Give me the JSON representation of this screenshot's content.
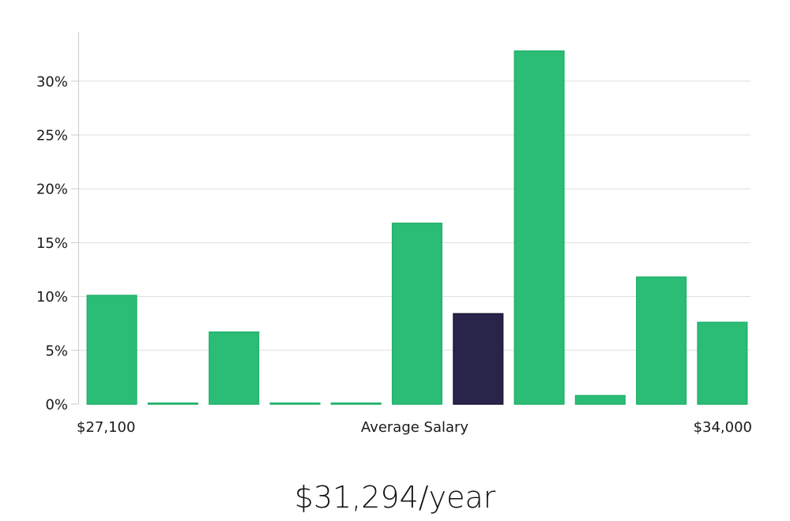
{
  "chart_data": {
    "type": "bar",
    "values": [
      10.1,
      0.1,
      6.7,
      0.1,
      0.1,
      16.8,
      8.4,
      32.8,
      0.8,
      11.8,
      7.6
    ],
    "highlight_index": 6,
    "ylim": [
      0,
      34.6
    ],
    "yticks": [
      0,
      5,
      10,
      15,
      20,
      25,
      30
    ],
    "ytick_labels": [
      "0%",
      "5%",
      "10%",
      "15%",
      "20%",
      "25%",
      "30%"
    ],
    "x_range_labels": {
      "min": "$27,100",
      "center": "Average Salary",
      "max": "$34,000"
    },
    "grid": true,
    "colors": {
      "bar": "#2bbd76",
      "bar_edge": "#22b26c",
      "highlight": "#29254a",
      "grid": "#dddddd",
      "axis": "#cccccc"
    }
  },
  "caption": "$31,294/year"
}
